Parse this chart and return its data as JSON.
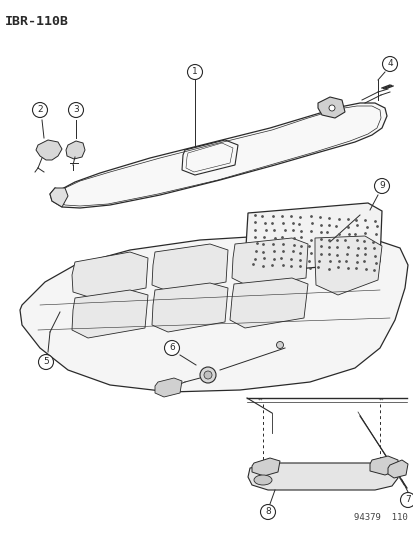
{
  "title": "IBR−110B",
  "bg_color": "#ffffff",
  "line_color": "#2a2a2a",
  "fig_width": 4.14,
  "fig_height": 5.33,
  "dpi": 100,
  "watermark": "94379  110"
}
